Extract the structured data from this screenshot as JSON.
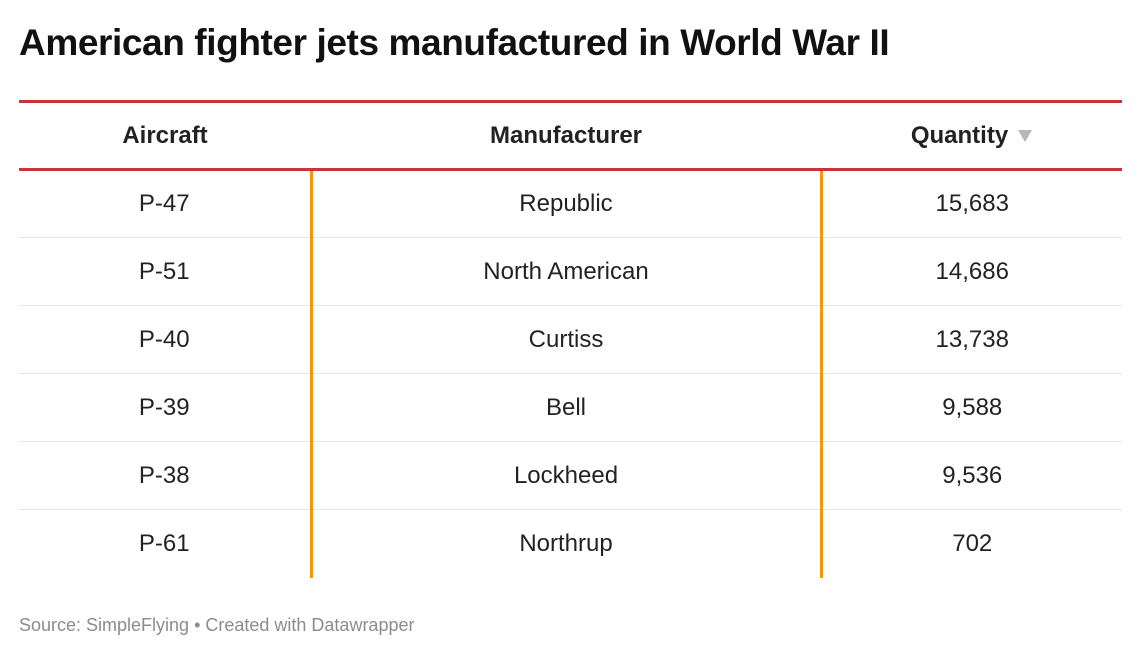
{
  "title": "American fighter jets manufactured in World War II",
  "source": "Source: SimpleFlying • Created with Datawrapper",
  "colors": {
    "header_rule": "#c73636",
    "column_divider": "#f2960f",
    "row_divider": "#e6e6e6",
    "sort_icon": "#b8b8b8"
  },
  "table": {
    "headers": {
      "aircraft": "Aircraft",
      "manufacturer": "Manufacturer",
      "quantity": "Quantity"
    },
    "rows": [
      {
        "aircraft": "P-47",
        "manufacturer": "Republic",
        "quantity": "15,683"
      },
      {
        "aircraft": "P-51",
        "manufacturer": "North American",
        "quantity": "14,686"
      },
      {
        "aircraft": "P-40",
        "manufacturer": "Curtiss",
        "quantity": "13,738"
      },
      {
        "aircraft": "P-39",
        "manufacturer": "Bell",
        "quantity": "9,588"
      },
      {
        "aircraft": "P-38",
        "manufacturer": "Lockheed",
        "quantity": "9,536"
      },
      {
        "aircraft": "P-61",
        "manufacturer": "Northrup",
        "quantity": "702"
      }
    ]
  },
  "chart_data": {
    "type": "table",
    "title": "American fighter jets manufactured in World War II",
    "columns": [
      "Aircraft",
      "Manufacturer",
      "Quantity"
    ],
    "sorted_by": "Quantity",
    "sort_order": "descending",
    "rows": [
      [
        "P-47",
        "Republic",
        15683
      ],
      [
        "P-51",
        "North American",
        14686
      ],
      [
        "P-40",
        "Curtiss",
        13738
      ],
      [
        "P-39",
        "Bell",
        9588
      ],
      [
        "P-38",
        "Lockheed",
        9536
      ],
      [
        "P-61",
        "Northrup",
        702
      ]
    ]
  }
}
